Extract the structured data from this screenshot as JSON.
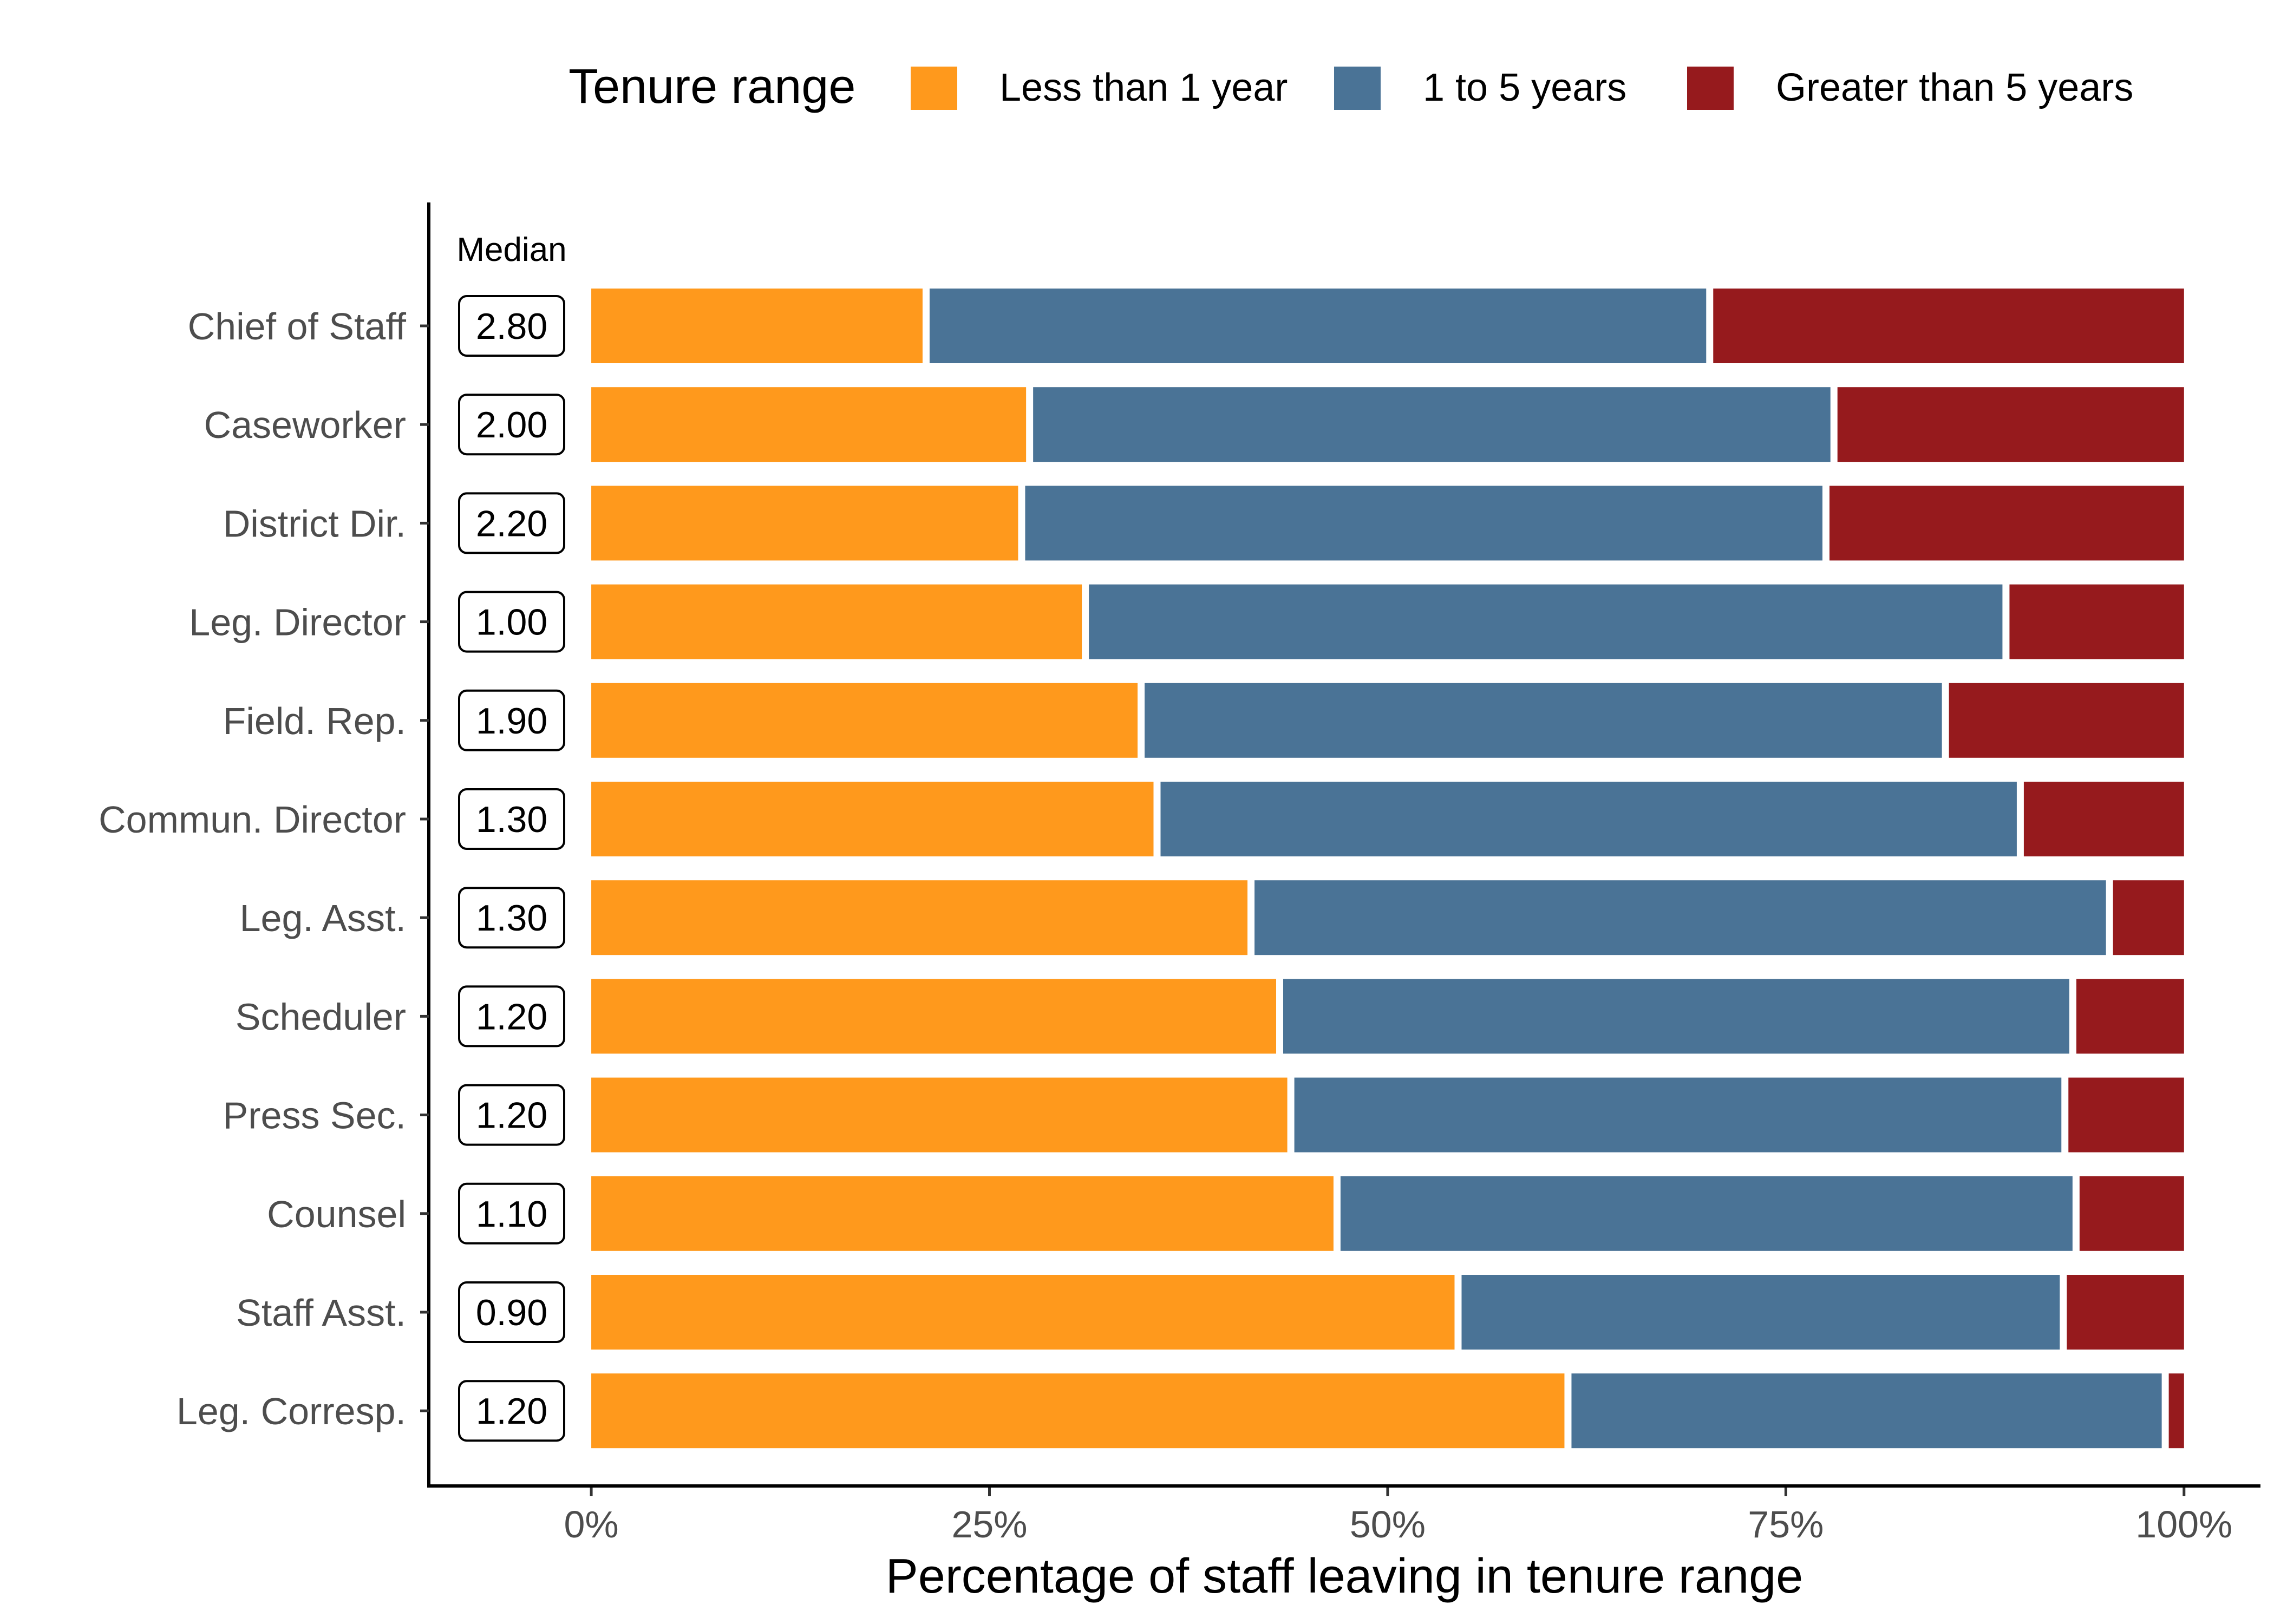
{
  "chart_data": {
    "type": "bar",
    "orientation": "horizontal",
    "stacked": true,
    "legend": {
      "title": "Tenure range",
      "position": "top",
      "entries": [
        {
          "label": "Less than 1 year",
          "color": "#FF991C"
        },
        {
          "label": "1 to 5 years",
          "color": "#4A7396"
        },
        {
          "label": "Greater than 5 years",
          "color": "#961A1D"
        }
      ]
    },
    "categories": [
      "Chief of Staff",
      "Caseworker",
      "District Dir.",
      "Leg. Director",
      "Field. Rep.",
      "Commun. Director",
      "Leg. Asst.",
      "Scheduler",
      "Press Sec.",
      "Counsel",
      "Staff Asst.",
      "Leg. Corresp."
    ],
    "series": [
      {
        "name": "Less than 1 year",
        "color": "#FF991C",
        "values": [
          20.8,
          27.3,
          26.8,
          30.8,
          34.3,
          35.3,
          41.2,
          43.0,
          43.7,
          46.6,
          54.2,
          61.1
        ]
      },
      {
        "name": "1 to 5 years",
        "color": "#4A7396",
        "values": [
          49.2,
          50.5,
          50.5,
          57.8,
          50.5,
          54.2,
          53.9,
          49.8,
          48.6,
          46.4,
          38.0,
          37.5
        ]
      },
      {
        "name": "Greater than 5 years",
        "color": "#961A1D",
        "values": [
          30.0,
          22.2,
          22.7,
          11.4,
          15.2,
          10.5,
          4.9,
          7.2,
          7.7,
          7.0,
          7.8,
          1.4
        ]
      }
    ],
    "median_label": "Median",
    "medians": [
      "2.80",
      "2.00",
      "2.20",
      "1.00",
      "1.90",
      "1.30",
      "1.30",
      "1.20",
      "1.20",
      "1.10",
      "0.90",
      "1.20"
    ],
    "x_ticks": [
      "0%",
      "25%",
      "50%",
      "75%",
      "100%"
    ],
    "x_tick_values": [
      0,
      25,
      50,
      75,
      100
    ],
    "xlabel": "Percentage of staff leaving in tenure range",
    "ylabel": "",
    "xlim": [
      -10.2,
      104.8
    ],
    "grid": false
  }
}
